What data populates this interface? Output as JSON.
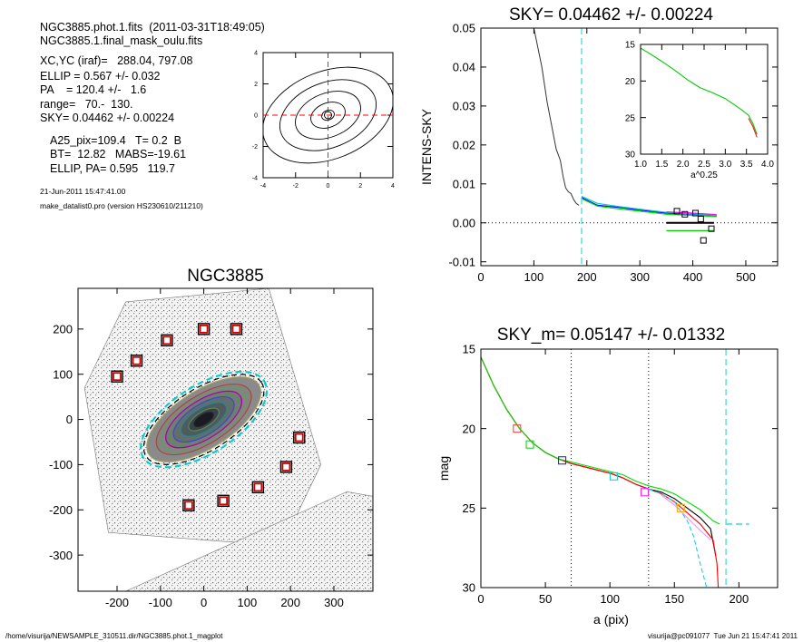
{
  "header": {
    "line1": "NGC3885.phot.1.fits  (2011-03-31T18:49:05)",
    "line2": "NGC3885.1.final_mask_oulu.fits",
    "line3": "XC,YC (iraf)=   288.04, 797.08",
    "line4": "ELLIP = 0.567 +/- 0.032",
    "line5": "PA    = 120.4 +/-   1.6",
    "line6": "range=   70.-  130.",
    "line7": "SKY= 0.04462 +/- 0.00224",
    "line8": "A25_pix=109.4   T= 0.2  B",
    "line9": "BT=  12.82   MABS=-19.61",
    "line10": "ELLIP, PA= 0.595   119.7",
    "date": "21-Jun-2011 15:47:41.00",
    "program": "make_datalist0.pro (version HS230610/211210)"
  },
  "footer": {
    "left": "/home/visurija/NEWSAMPLE_310511.dir/NGC3885.phot.1_magplot",
    "right": "visurija@pc091077  Tue Jun 21 15:47:41 2011"
  },
  "chart_data": [
    {
      "id": "contour",
      "type": "contour",
      "xlim": [
        -4,
        4
      ],
      "ylim": [
        -4,
        4
      ],
      "xticks": [
        -4,
        -2,
        0,
        2,
        4
      ],
      "yticks": [
        -4,
        -2,
        0,
        2,
        4
      ],
      "contours": [
        {
          "a": 0.4,
          "b": 0.3
        },
        {
          "a": 1.1,
          "b": 0.75
        },
        {
          "a": 2.1,
          "b": 1.35
        },
        {
          "a": 3.1,
          "b": 2.0
        },
        {
          "a": 4.2,
          "b": 2.7
        }
      ],
      "rotation_deg": -22
    },
    {
      "id": "image",
      "type": "image",
      "title": "NGC3885",
      "xlim": [
        -290,
        390
      ],
      "ylim": [
        -380,
        290
      ],
      "xticks": [
        -200,
        -100,
        0,
        100,
        200,
        300
      ],
      "yticks": [
        200,
        100,
        0,
        -100,
        -200,
        -300
      ],
      "isophote_rotation_deg": -32.5,
      "isophotes_a": [
        150,
        125,
        100,
        80,
        60,
        40,
        25
      ],
      "isophote_ratio": 0.44,
      "stars": [
        [
          -200,
          95
        ],
        [
          -155,
          130
        ],
        [
          -85,
          175
        ],
        [
          0,
          200
        ],
        [
          75,
          200
        ],
        [
          -35,
          -190
        ],
        [
          45,
          -180
        ],
        [
          125,
          -150
        ],
        [
          190,
          -105
        ],
        [
          220,
          -40
        ]
      ]
    },
    {
      "id": "sky",
      "type": "line",
      "title": "SKY= 0.04462 +/- 0.00224",
      "xlabel": "",
      "ylabel": "INTENS-SKY",
      "xlim": [
        0,
        560
      ],
      "ylim": [
        -0.011,
        0.05
      ],
      "xticks": [
        0,
        100,
        200,
        300,
        400,
        500
      ],
      "yticks": [
        -0.01,
        0.0,
        0.01,
        0.02,
        0.03,
        0.04,
        0.05
      ],
      "ytick_labels": [
        "-0.01",
        "0.00",
        "0.01",
        "0.02",
        "0.03",
        "0.04",
        "0.05"
      ],
      "sky_line_x": 190,
      "profile": {
        "x": [
          100,
          115,
          125,
          135,
          142,
          150,
          155,
          160,
          165,
          170,
          175,
          180,
          185
        ],
        "y": [
          0.05,
          0.04,
          0.031,
          0.024,
          0.019,
          0.016,
          0.012,
          0.009,
          0.008,
          0.0075,
          0.006,
          0.005,
          0.0045
        ]
      },
      "series": [
        {
          "name": "",
          "color": "#0000ff",
          "x": [
            190,
            220,
            260,
            300,
            350,
            400,
            445
          ],
          "y": [
            0.0065,
            0.0045,
            0.004,
            0.0033,
            0.0025,
            0.0022,
            0.0018
          ]
        },
        {
          "name": "",
          "color": "#00cccc",
          "x": [
            190,
            220,
            260,
            300,
            350,
            400,
            445
          ],
          "y": [
            0.0068,
            0.005,
            0.0042,
            0.0035,
            0.0027,
            0.0023,
            0.0019
          ]
        },
        {
          "name": "",
          "color": "#00dd00",
          "x": [
            190,
            220,
            260,
            300,
            350,
            400,
            445
          ],
          "y": [
            0.0062,
            0.0043,
            0.0036,
            0.003,
            0.0022,
            0.0019,
            0.0016
          ]
        },
        {
          "name": "",
          "color": "#ff00ff",
          "x": [
            350,
            400,
            445
          ],
          "y": [
            0.0028,
            0.0025,
            0.0021
          ]
        }
      ],
      "markers": [
        {
          "x": 370,
          "y": 0.003
        },
        {
          "x": 385,
          "y": 0.0022
        },
        {
          "x": 405,
          "y": 0.0025
        },
        {
          "x": 415,
          "y": 0.001
        },
        {
          "x": 420,
          "y": -0.0045
        },
        {
          "x": 435,
          "y": -0.0015
        }
      ],
      "inset": {
        "xlabel": "a^0.25",
        "xlim": [
          1.0,
          4.0
        ],
        "ylim": [
          15,
          30
        ],
        "xticks": [
          1.0,
          1.5,
          2.0,
          2.5,
          3.0,
          3.5,
          4.0
        ],
        "xtick_labels": [
          "1.0",
          "1.5",
          "2.0",
          "2.5",
          "3.0",
          "3.5",
          "4.0"
        ],
        "yticks": [
          15,
          20,
          25,
          30
        ],
        "x": [
          1.0,
          1.2,
          1.5,
          1.8,
          2.1,
          2.4,
          2.7,
          3.0,
          3.2,
          3.4,
          3.55,
          3.65,
          3.75
        ],
        "y": [
          15.5,
          16.2,
          17.3,
          18.5,
          19.8,
          20.9,
          21.6,
          22.4,
          23.2,
          24.0,
          24.7,
          25.8,
          27.3
        ]
      }
    },
    {
      "id": "mag",
      "type": "line",
      "title": "SKY_m=  0.05147 +/- 0.01332",
      "xlabel": "a (pix)",
      "ylabel": "mag",
      "xlim": [
        0,
        230
      ],
      "ylim": [
        15,
        30
      ],
      "xticks": [
        0,
        50,
        100,
        150,
        200
      ],
      "yticks": [
        15,
        20,
        25,
        30
      ],
      "vlines_dotted": [
        70,
        130
      ],
      "sky_line_x": 190,
      "sky_h": {
        "x": [
          190,
          208
        ],
        "y": 26.0
      },
      "series": [
        {
          "name": "",
          "color": "#000000",
          "x": [
            0,
            10,
            20,
            30,
            40,
            50,
            60,
            70,
            80,
            90,
            100,
            110,
            120,
            130,
            140,
            150,
            160,
            170,
            178,
            182
          ],
          "y": [
            15.5,
            17.3,
            18.8,
            20.0,
            20.9,
            21.5,
            21.9,
            22.2,
            22.4,
            22.6,
            22.8,
            23.1,
            23.5,
            23.8,
            24.0,
            24.4,
            25.0,
            25.6,
            26.3,
            28.0
          ]
        },
        {
          "name": "",
          "color": "#ff0000",
          "x": [
            0,
            10,
            20,
            30,
            40,
            50,
            60,
            70,
            80,
            90,
            100,
            110,
            120,
            130,
            140,
            150,
            160,
            170,
            180,
            183,
            184
          ],
          "y": [
            15.5,
            17.3,
            18.8,
            20.0,
            20.9,
            21.5,
            21.9,
            22.2,
            22.4,
            22.6,
            22.8,
            23.1,
            23.5,
            23.8,
            24.1,
            24.6,
            25.3,
            26.0,
            27.0,
            28.5,
            30.0
          ]
        },
        {
          "name": "",
          "color": "#00dd00",
          "x": [
            0,
            10,
            20,
            30,
            40,
            50,
            60,
            70,
            80,
            90,
            100,
            110,
            120,
            130,
            140,
            150,
            160,
            170,
            180,
            185
          ],
          "y": [
            15.5,
            17.3,
            18.8,
            20.0,
            20.9,
            21.5,
            21.9,
            22.1,
            22.3,
            22.5,
            22.7,
            22.9,
            23.3,
            23.6,
            23.8,
            24.1,
            24.6,
            25.1,
            25.8,
            26.0
          ]
        },
        {
          "name": "",
          "color": "#00dddd",
          "x": [
            130,
            140,
            150,
            160,
            165,
            170,
            175
          ],
          "y": [
            23.8,
            24.1,
            24.6,
            25.8,
            26.8,
            28.5,
            30.0
          ]
        },
        {
          "name": "",
          "color": "#ff88ff",
          "x": [
            140,
            150,
            160,
            170,
            178
          ],
          "y": [
            24.2,
            24.8,
            25.6,
            26.4,
            27.0
          ]
        }
      ],
      "markers": [
        {
          "x": 28,
          "y": 20.0,
          "color": "#ff4444"
        },
        {
          "x": 38,
          "y": 21.0,
          "color": "#22cc22"
        },
        {
          "x": 63,
          "y": 22.0,
          "color": "#2222ff"
        },
        {
          "x": 103,
          "y": 23.0,
          "color": "#22cccc"
        },
        {
          "x": 127,
          "y": 24.0,
          "color": "#ff22ff"
        },
        {
          "x": 155,
          "y": 25.0,
          "color": "#ffaa00"
        }
      ]
    }
  ]
}
